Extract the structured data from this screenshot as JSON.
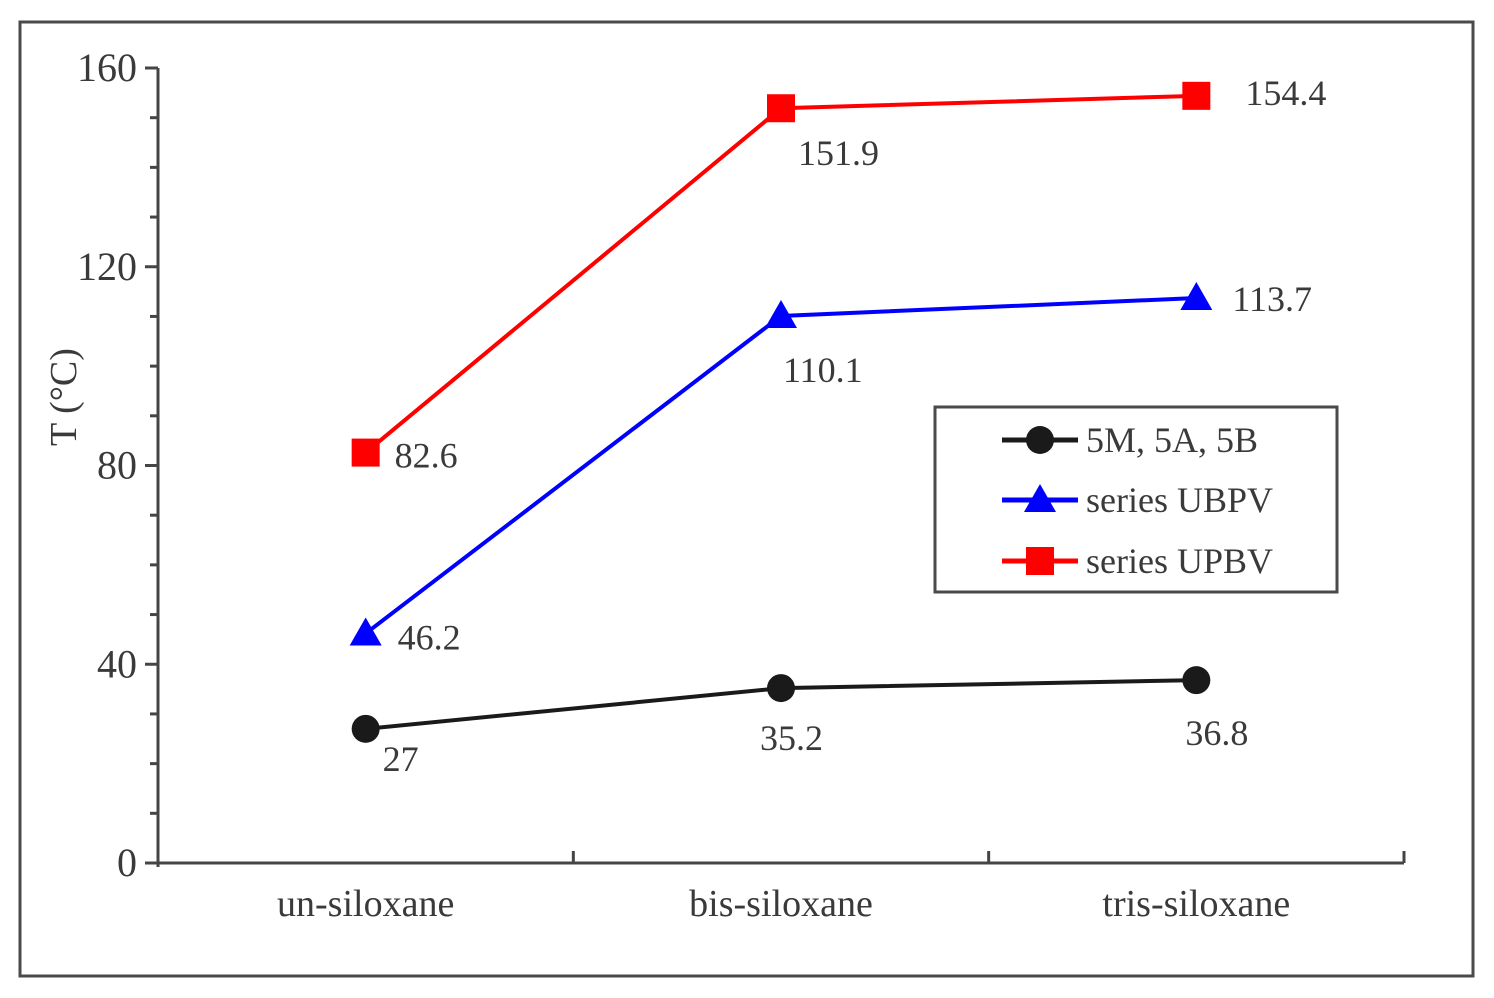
{
  "chart_data": {
    "type": "line",
    "title": "",
    "categories": [
      "un-siloxane",
      "bis-siloxane",
      "tris-siloxane"
    ],
    "series": [
      {
        "name": "5M, 5A, 5B",
        "marker": "circle",
        "color": "#1a1a1a",
        "values": [
          27,
          35.2,
          36.8
        ],
        "point_labels": [
          "27",
          "35.2",
          "36.8"
        ]
      },
      {
        "name": "series UBPV",
        "marker": "triangle",
        "color": "#0000ff",
        "values": [
          46.2,
          110.1,
          113.7
        ],
        "point_labels": [
          "46.2",
          "110.1",
          "113.7"
        ]
      },
      {
        "name": "series UPBV",
        "marker": "square",
        "color": "#ff0000",
        "values": [
          82.6,
          151.9,
          154.4
        ],
        "point_labels": [
          "82.6",
          "151.9",
          "154.4"
        ]
      }
    ],
    "xlabel": "",
    "ylabel": "T (°C)",
    "ylim": [
      0,
      160
    ],
    "yticks": [
      0,
      40,
      80,
      120,
      160
    ],
    "ytick_labels": [
      "0",
      "40",
      "80",
      "120",
      "160"
    ],
    "y_minor_tick_step": 10,
    "grid": false,
    "legend": {
      "position": "middle-right",
      "entries": [
        "5M, 5A, 5B",
        "series UBPV",
        "series UPBV"
      ]
    },
    "colors": {
      "axis": "#454545",
      "text": "#3a3a3a",
      "frame_border": "#4a4a4a",
      "background": "#ffffff",
      "series_black": "#1a1a1a",
      "series_blue": "#0000ff",
      "series_red": "#ff0000"
    }
  }
}
